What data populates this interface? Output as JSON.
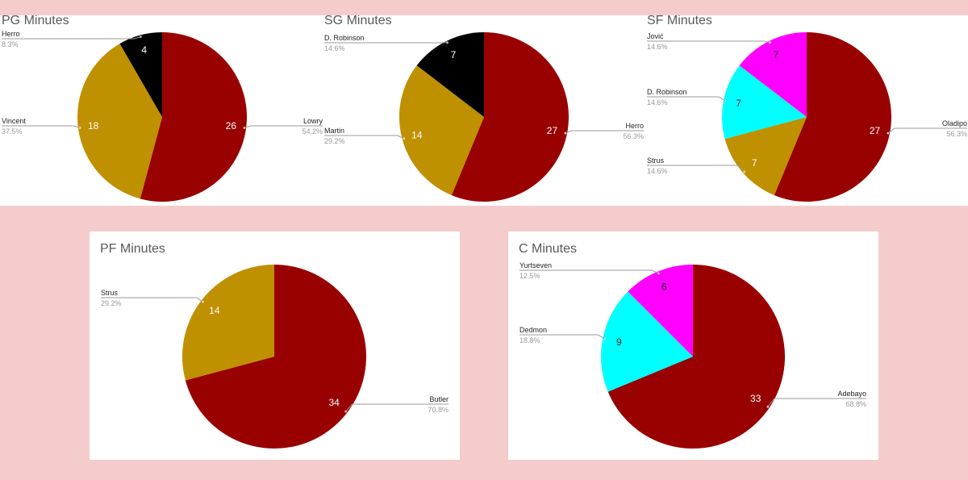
{
  "colors": {
    "background": "#f4cccc",
    "panel": "#ffffff",
    "leader": "#999999",
    "percent_text": "#999999",
    "label_text": "#222222",
    "title_text": "#595959"
  },
  "chart_data": [
    {
      "type": "pie",
      "title": "PG Minutes",
      "slices": [
        {
          "label": "Lowry",
          "value": 26,
          "percent": "54.2%",
          "color": "#990000"
        },
        {
          "label": "Vincent",
          "value": 18,
          "percent": "37.5%",
          "color": "#bf9000"
        },
        {
          "label": "Herro",
          "value": 4,
          "percent": "8.3%",
          "color": "#000000"
        }
      ]
    },
    {
      "type": "pie",
      "title": "SG Minutes",
      "slices": [
        {
          "label": "Herro",
          "value": 27,
          "percent": "56.3%",
          "color": "#990000"
        },
        {
          "label": "Martin",
          "value": 14,
          "percent": "29.2%",
          "color": "#bf9000"
        },
        {
          "label": "D. Robinson",
          "value": 7,
          "percent": "14.6%",
          "color": "#000000"
        }
      ]
    },
    {
      "type": "pie",
      "title": "SF Minutes",
      "slices": [
        {
          "label": "Oladipo",
          "value": 27,
          "percent": "56.3%",
          "color": "#990000"
        },
        {
          "label": "Strus",
          "value": 7,
          "percent": "14.6%",
          "color": "#bf9000"
        },
        {
          "label": "D. Robinson",
          "value": 7,
          "percent": "14.6%",
          "color": "#00ffff"
        },
        {
          "label": "Jović",
          "value": 7,
          "percent": "14.6%",
          "color": "#ff00ff"
        }
      ]
    },
    {
      "type": "pie",
      "title": "PF Minutes",
      "slices": [
        {
          "label": "Butler",
          "value": 34,
          "percent": "70.8%",
          "color": "#990000"
        },
        {
          "label": "Strus",
          "value": 14,
          "percent": "29.2%",
          "color": "#bf9000"
        }
      ]
    },
    {
      "type": "pie",
      "title": "C Minutes",
      "slices": [
        {
          "label": "Adebayo",
          "value": 33,
          "percent": "68.8%",
          "color": "#990000"
        },
        {
          "label": "Dedmon",
          "value": 9,
          "percent": "18.8%",
          "color": "#00ffff"
        },
        {
          "label": "Yurtseven",
          "value": 6,
          "percent": "12.5%",
          "color": "#ff00ff"
        }
      ]
    }
  ]
}
